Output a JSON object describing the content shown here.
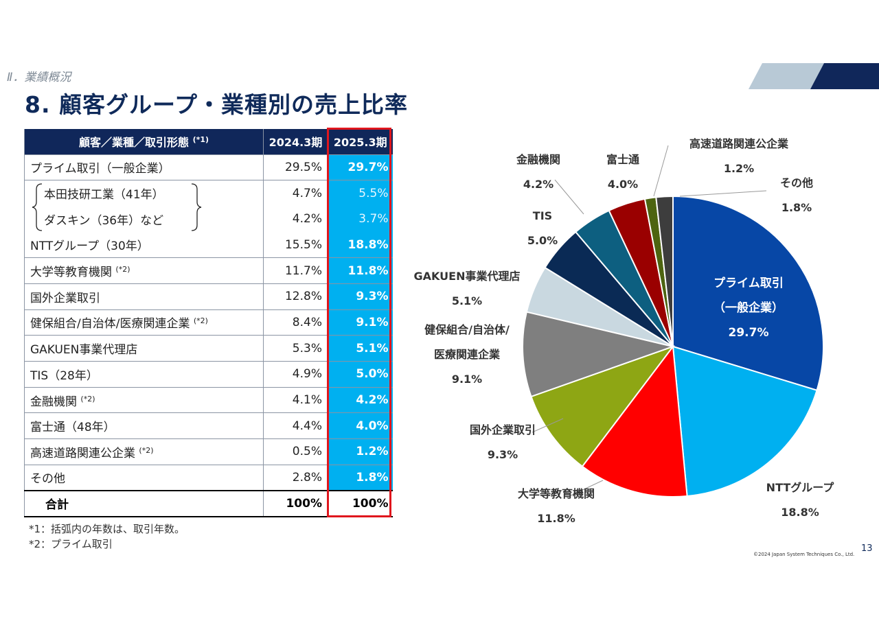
{
  "header": {
    "section": "Ⅱ．業績概況",
    "title": "8. 顧客グループ・業種別の売上比率"
  },
  "table": {
    "headers": {
      "label": "顧客／業種／取引形態",
      "label_note": "(*1)",
      "prev": "2024.3期",
      "curr": "2025.3期"
    },
    "rows": [
      {
        "label": "プライム取引（一般企業）",
        "note": "",
        "prev": "29.5%",
        "curr": "29.7%",
        "sub": false
      },
      {
        "label": "本田技研工業（41年）",
        "note": "",
        "prev": "4.7%",
        "curr": "5.5%",
        "sub": true
      },
      {
        "label": "ダスキン（36年）など",
        "note": "",
        "prev": "4.2%",
        "curr": "3.7%",
        "sub": true
      },
      {
        "label": "NTTグループ（30年）",
        "note": "",
        "prev": "15.5%",
        "curr": "18.8%",
        "sub": false
      },
      {
        "label": "大学等教育機関",
        "note": "(*2)",
        "prev": "11.7%",
        "curr": "11.8%",
        "sub": false
      },
      {
        "label": "国外企業取引",
        "note": "",
        "prev": "12.8%",
        "curr": "9.3%",
        "sub": false
      },
      {
        "label": "健保組合/自治体/医療関連企業",
        "note": "(*2)",
        "prev": "8.4%",
        "curr": "9.1%",
        "sub": false
      },
      {
        "label": "GAKUEN事業代理店",
        "note": "",
        "prev": "5.3%",
        "curr": "5.1%",
        "sub": false
      },
      {
        "label": "TIS（28年）",
        "note": "",
        "prev": "4.9%",
        "curr": "5.0%",
        "sub": false
      },
      {
        "label": "金融機関",
        "note": "(*2)",
        "prev": "4.1%",
        "curr": "4.2%",
        "sub": false
      },
      {
        "label": "富士通（48年）",
        "note": "",
        "prev": "4.4%",
        "curr": "4.0%",
        "sub": false
      },
      {
        "label": "高速道路関連公企業",
        "note": "(*2)",
        "prev": "0.5%",
        "curr": "1.2%",
        "sub": false
      },
      {
        "label": "その他",
        "note": "",
        "prev": "2.8%",
        "curr": "1.8%",
        "sub": false
      }
    ],
    "total": {
      "label": "合計",
      "prev": "100%",
      "curr": "100%"
    }
  },
  "notes": [
    "*1：括弧内の年数は、取引年数。",
    "*2：プライム取引"
  ],
  "footer": {
    "copyright": "©2024 Japan System Techniques Co., Ltd.",
    "page": "13"
  },
  "colors": {
    "navy": "#10275a",
    "accent": "#00b0f0",
    "highlight_border": "#e0161d"
  },
  "chart_data": {
    "type": "pie",
    "start": "12 o'clock, clockwise",
    "slices": [
      {
        "label_lines": [
          "プライム取引",
          "（一般企業）",
          "29.7%"
        ],
        "value": 29.7,
        "color": "#0747a6"
      },
      {
        "label_lines": [
          "NTTグループ",
          "18.8%"
        ],
        "value": 18.8,
        "color": "#00b0f0"
      },
      {
        "label_lines": [
          "大学等教育機関",
          "11.8%"
        ],
        "value": 11.8,
        "color": "#ff0000"
      },
      {
        "label_lines": [
          "国外企業取引",
          "9.3%"
        ],
        "value": 9.3,
        "color": "#8ea614"
      },
      {
        "label_lines": [
          "健保組合/自治体/",
          "医療関連企業",
          "9.1%"
        ],
        "value": 9.1,
        "color": "#7f7f7f"
      },
      {
        "label_lines": [
          "GAKUEN事業代理店",
          "5.1%"
        ],
        "value": 5.1,
        "color": "#c9d8e0"
      },
      {
        "label_lines": [
          "TIS",
          "5.0%"
        ],
        "value": 5.0,
        "color": "#0a2a55"
      },
      {
        "label_lines": [
          "金融機関",
          "4.2%"
        ],
        "value": 4.2,
        "color": "#0d5f80"
      },
      {
        "label_lines": [
          "富士通",
          "4.0%"
        ],
        "value": 4.0,
        "color": "#9a0000"
      },
      {
        "label_lines": [
          "高速道路関連公企業",
          "1.2%"
        ],
        "value": 1.2,
        "color": "#4d6410"
      },
      {
        "label_lines": [
          "その他",
          "1.8%"
        ],
        "value": 1.8,
        "color": "#3d3d3d"
      }
    ]
  }
}
